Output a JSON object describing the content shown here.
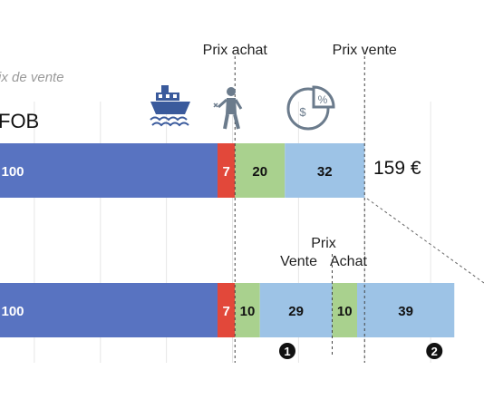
{
  "chart_data": {
    "type": "bar",
    "orientation": "horizontal-stacked",
    "subtitle": "ix de vente",
    "xlim": [
      0,
      234
    ],
    "grid": true,
    "rows": [
      {
        "label": "FOB",
        "total_label": "159 €",
        "segments": [
          {
            "value": 100,
            "label": "100",
            "color": "#5873C1"
          },
          {
            "value": 7,
            "label": "7",
            "color": "#E2483A"
          },
          {
            "value": 20,
            "label": "20",
            "color": "#A9D18E"
          },
          {
            "value": 32,
            "label": "32",
            "color": "#9DC3E6"
          }
        ]
      },
      {
        "label": "",
        "total_label": "",
        "segments": [
          {
            "value": 100,
            "label": "100",
            "color": "#5873C1"
          },
          {
            "value": 7,
            "label": "7",
            "color": "#E2483A"
          },
          {
            "value": 10,
            "label": "10",
            "color": "#A9D18E"
          },
          {
            "value": 29,
            "label": "29",
            "color": "#9DC3E6"
          },
          {
            "value": 10,
            "label": "10",
            "color": "#A9D18E"
          },
          {
            "value": 39,
            "label": "39",
            "color": "#9DC3E6"
          }
        ]
      }
    ],
    "markers_top": [
      {
        "label": "Prix achat",
        "at": 107
      },
      {
        "label": "Prix vente",
        "at": 159
      }
    ],
    "markers_bottom": {
      "prix": "Prix",
      "vente": "Vente",
      "achat": "Achat",
      "at": 146
    },
    "circle_labels": [
      {
        "label": "1",
        "at": 128
      },
      {
        "label": "2",
        "at": 187
      }
    ],
    "icons": [
      "ship-icon",
      "worker-icon",
      "pie-percent-dollar-icon"
    ]
  }
}
